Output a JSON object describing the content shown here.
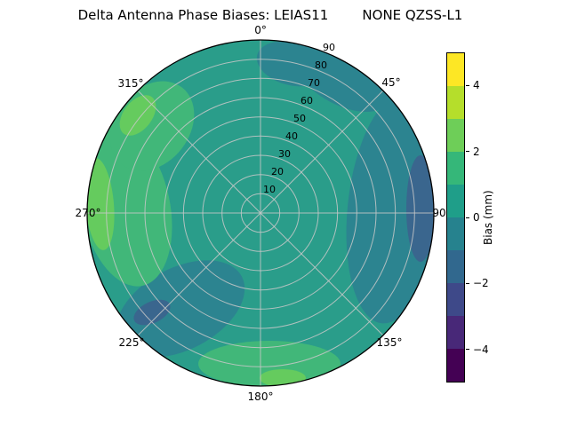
{
  "palette": {
    "base": "#2a9d8a",
    "low1": "#2c8490",
    "low2": "#3a668e",
    "high1": "#41b779",
    "high2": "#65cb5e"
  },
  "chart_data": {
    "type": "heatmap",
    "projection": "polar",
    "title": "Delta Antenna Phase Biases: LEIAS11        NONE QZSS-L1",
    "angular_tick_labels": [
      "0°",
      "45°",
      "90",
      "135°",
      "180°",
      "225°",
      "270°",
      "315°"
    ],
    "radial_tick_labels": [
      "10",
      "20",
      "30",
      "40",
      "50",
      "60",
      "70",
      "80",
      "90"
    ],
    "radial_range": [
      0,
      90
    ],
    "grid": true,
    "colorbar": {
      "label": "Bias (mm)",
      "min": -5,
      "max": 5,
      "ticks": [
        {
          "label": "4",
          "value": 4
        },
        {
          "label": "2",
          "value": 2
        },
        {
          "label": "0",
          "value": 0
        },
        {
          "label": "−2",
          "value": -2
        },
        {
          "label": "−4",
          "value": -4
        }
      ],
      "colors": [
        "#fde725",
        "#b5de2b",
        "#6ece58",
        "#35b779",
        "#1f9e89",
        "#26828e",
        "#31688e",
        "#3e4989",
        "#482878",
        "#440154"
      ],
      "position": "right"
    },
    "regions": [
      {
        "description": "background over most of the dish",
        "bias_mm": 0.5
      },
      {
        "description": "west sector, azimuth ~250–335°, mid-to-outer radii",
        "bias_mm": 2
      },
      {
        "description": "west edge, azimuth ~285–310°",
        "bias_mm": 2.5
      },
      {
        "description": "south edge, azimuth ~160–210°",
        "bias_mm": 1.5
      },
      {
        "description": "east sector, azimuth ~45–130°",
        "bias_mm": -1
      },
      {
        "description": "east edge, azimuth ~80–105°",
        "bias_mm": -2
      },
      {
        "description": "south-west sector, azimuth ~200–245°, mid radii",
        "bias_mm": -1
      },
      {
        "description": "north / north-east near edge, azimuth ~350–60°",
        "bias_mm": -0.5
      }
    ]
  }
}
